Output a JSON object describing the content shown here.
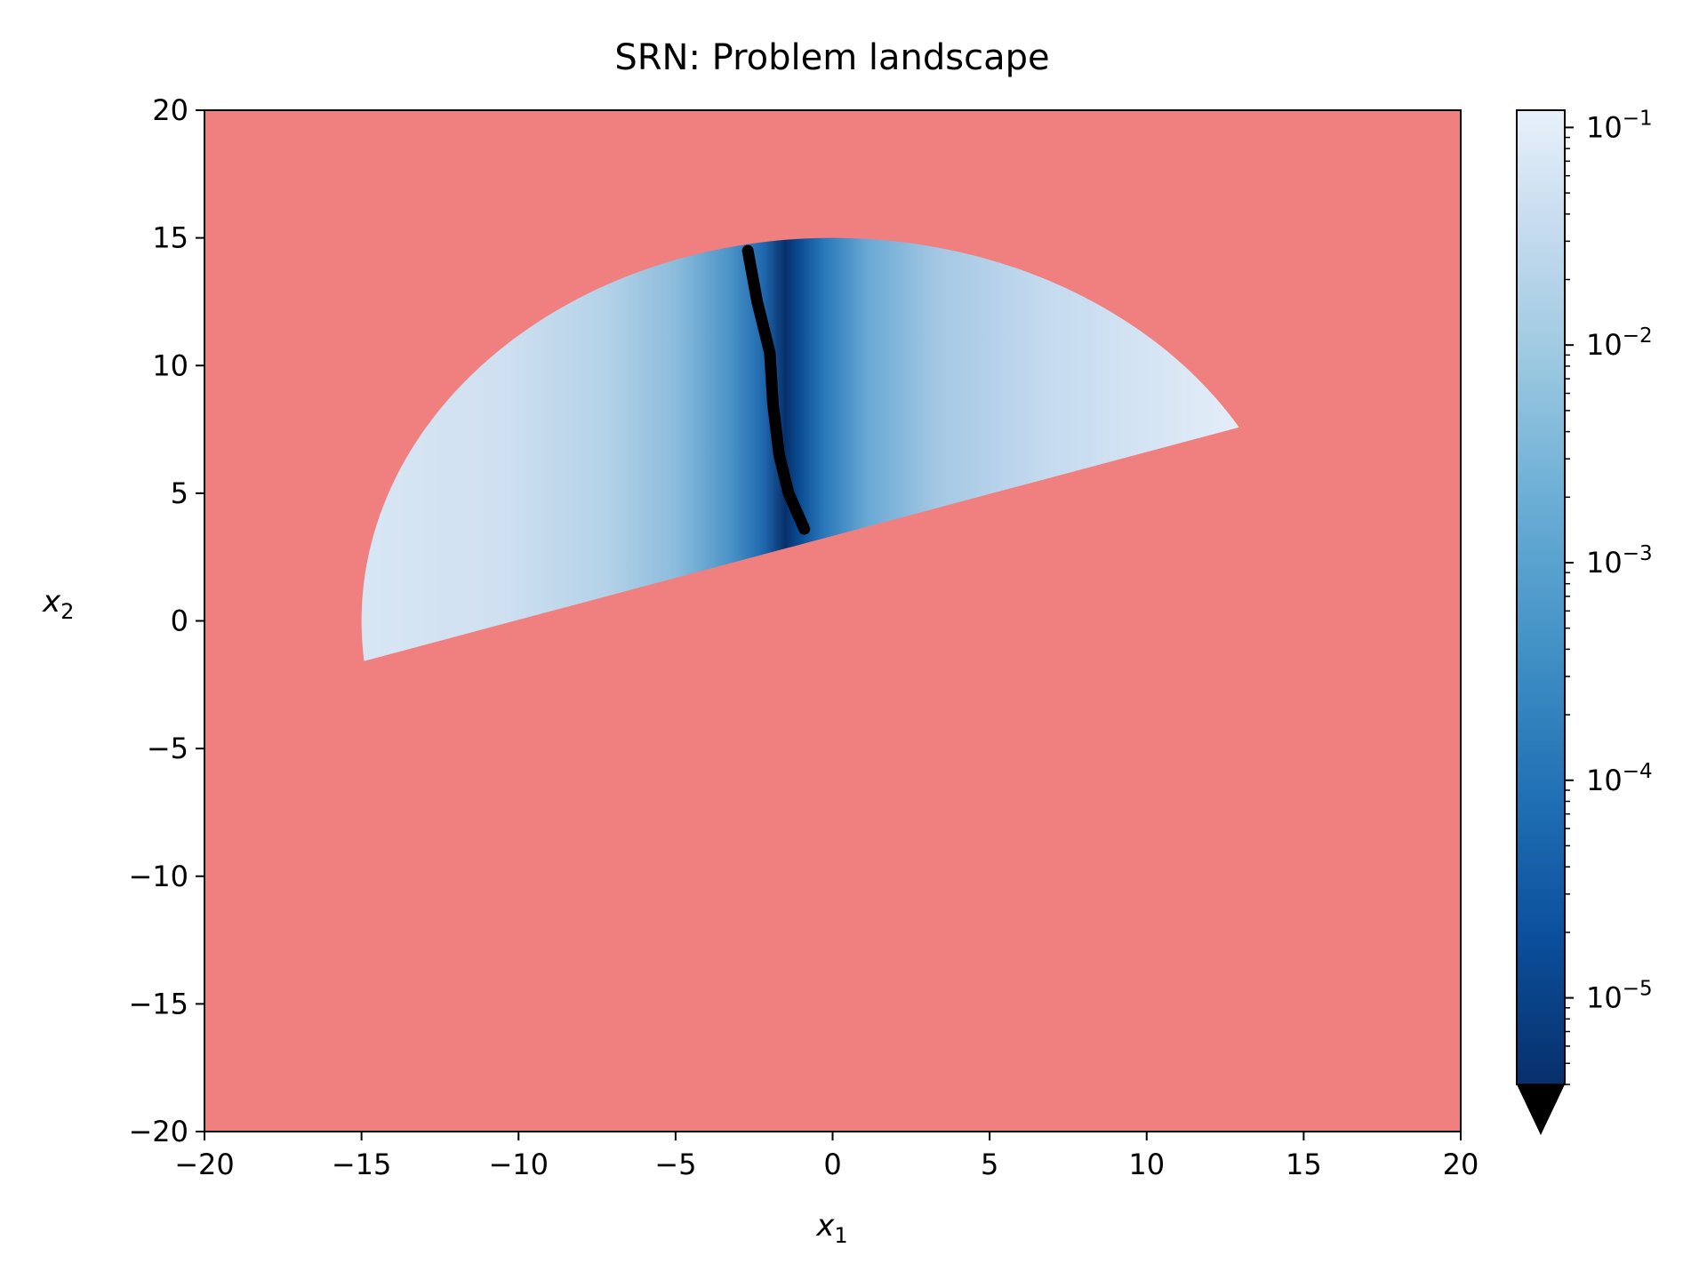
{
  "chart_data": {
    "type": "heatmap",
    "title": "SRN: Problem landscape",
    "xlabel": "x",
    "xlabel_sub": "1",
    "ylabel": "x",
    "ylabel_sub": "2",
    "xlim": [
      -20,
      20
    ],
    "ylim": [
      -20,
      20
    ],
    "xticks": [
      -20,
      -15,
      -10,
      -5,
      0,
      5,
      10,
      15,
      20
    ],
    "xtick_labels": [
      "−20",
      "−15",
      "−10",
      "−5",
      "0",
      "5",
      "10",
      "15",
      "20"
    ],
    "yticks": [
      20,
      15,
      10,
      5,
      0,
      -5,
      -10,
      -15,
      -20
    ],
    "ytick_labels": [
      "20",
      "15",
      "10",
      "5",
      "0",
      "−5",
      "−10",
      "−15",
      "−20"
    ],
    "infeasible_color": "#f08080",
    "colormap": "Blues_r",
    "under_color": "#000000",
    "feasible_region": {
      "circle_radius": 15,
      "line_constraint_points": [
        [
          -15,
          -1.6
        ],
        [
          13,
          7.6
        ]
      ]
    },
    "valley": [
      [
        -2.7,
        14.5
      ],
      [
        -2.4,
        12.5
      ],
      [
        -2.0,
        10.5
      ],
      [
        -1.9,
        8.5
      ],
      [
        -1.7,
        6.5
      ],
      [
        -1.4,
        5.0
      ],
      [
        -0.9,
        3.6
      ]
    ],
    "colorbar": {
      "scale": "log",
      "vmin": 4e-06,
      "vmax": 0.12,
      "ticks": [
        0.1,
        0.01,
        0.001,
        0.0001,
        1e-05
      ],
      "tick_base": "10",
      "tick_exponents": [
        "−1",
        "−2",
        "−3",
        "−4",
        "−5"
      ],
      "extend": "min"
    }
  }
}
